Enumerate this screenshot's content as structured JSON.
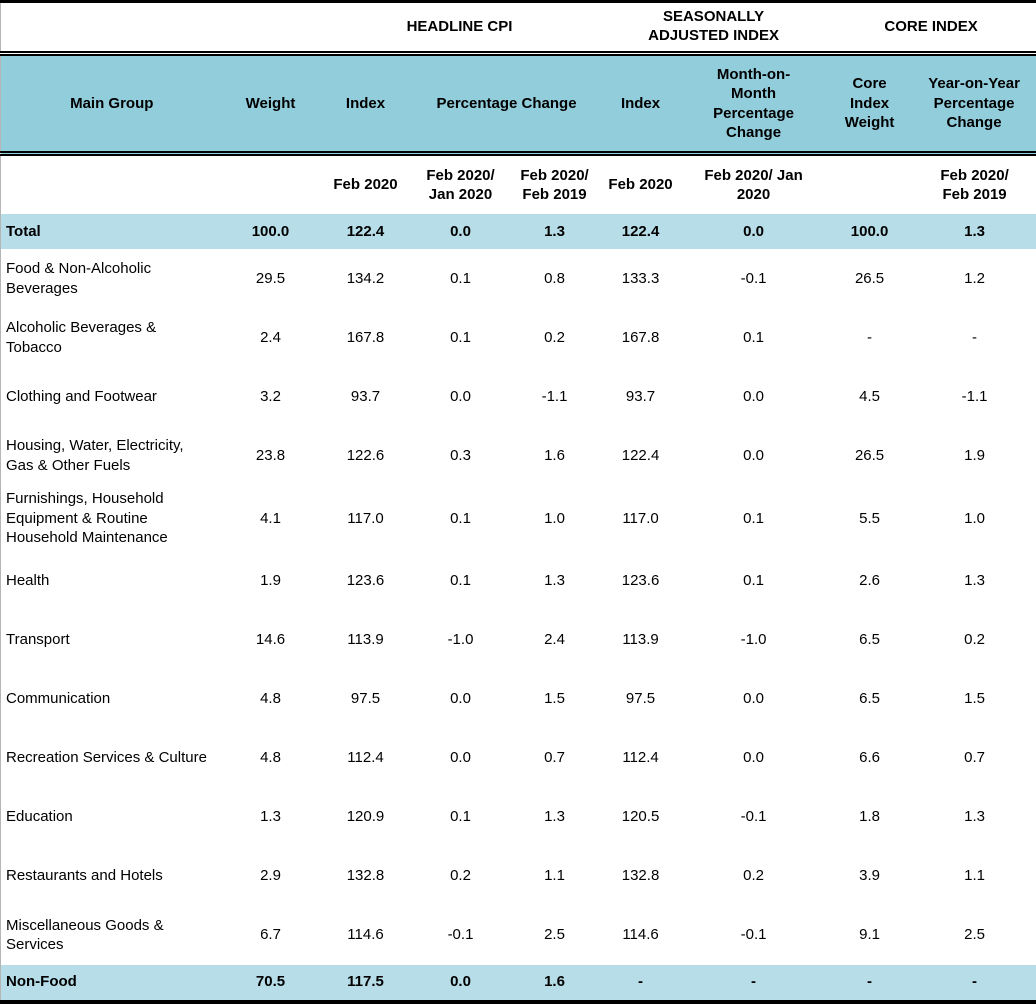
{
  "table": {
    "group_headers": {
      "headline_cpi": "HEADLINE CPI",
      "seasonally_adjusted": "SEASONALLY\nADJUSTED INDEX",
      "core_index": "CORE INDEX"
    },
    "columns": {
      "main_group": "Main Group",
      "weight": "Weight",
      "index": "Index",
      "percentage_change": "Percentage Change",
      "sa_index": "Index",
      "mom_percentage_change": "Month-on-\nMonth\nPercentage\nChange",
      "core_index_weight": "Core\nIndex\nWeight",
      "yoy_percentage_change": "Year-on-Year\nPercentage\nChange"
    },
    "period_headers": {
      "index_period": "Feb 2020",
      "pc_mom_period": "Feb 2020/\nJan 2020",
      "pc_yoy_period": "Feb 2020/\nFeb 2019",
      "sa_index_period": "Feb 2020",
      "sa_mom_period": "Feb 2020/ Jan\n2020",
      "core_yoy_period": "Feb 2020/\nFeb 2019"
    },
    "rows": [
      {
        "label": "Total",
        "highlight": true,
        "values": [
          "100.0",
          "122.4",
          "0.0",
          "1.3",
          "122.4",
          "0.0",
          "100.0",
          "1.3"
        ]
      },
      {
        "label": "Food & Non-Alcoholic Beverages",
        "highlight": false,
        "values": [
          "29.5",
          "134.2",
          "0.1",
          "0.8",
          "133.3",
          "-0.1",
          "26.5",
          "1.2"
        ]
      },
      {
        "label": "Alcoholic Beverages & Tobacco",
        "highlight": false,
        "values": [
          "2.4",
          "167.8",
          "0.1",
          "0.2",
          "167.8",
          "0.1",
          "-",
          "-"
        ]
      },
      {
        "label": "Clothing and Footwear",
        "highlight": false,
        "values": [
          "3.2",
          "93.7",
          "0.0",
          "-1.1",
          "93.7",
          "0.0",
          "4.5",
          "-1.1"
        ]
      },
      {
        "label": "Housing, Water, Electricity, Gas & Other Fuels",
        "highlight": false,
        "values": [
          "23.8",
          "122.6",
          "0.3",
          "1.6",
          "122.4",
          "0.0",
          "26.5",
          "1.9"
        ]
      },
      {
        "label": "Furnishings, Household Equipment  & Routine Household Maintenance",
        "highlight": false,
        "values": [
          "4.1",
          "117.0",
          "0.1",
          "1.0",
          "117.0",
          "0.1",
          "5.5",
          "1.0"
        ]
      },
      {
        "label": "Health",
        "highlight": false,
        "values": [
          "1.9",
          "123.6",
          "0.1",
          "1.3",
          "123.6",
          "0.1",
          "2.6",
          "1.3"
        ]
      },
      {
        "label": "Transport",
        "highlight": false,
        "values": [
          "14.6",
          "113.9",
          "-1.0",
          "2.4",
          "113.9",
          "-1.0",
          "6.5",
          "0.2"
        ]
      },
      {
        "label": "Communication",
        "highlight": false,
        "values": [
          "4.8",
          "97.5",
          "0.0",
          "1.5",
          "97.5",
          "0.0",
          "6.5",
          "1.5"
        ]
      },
      {
        "label": "Recreation Services & Culture",
        "highlight": false,
        "values": [
          "4.8",
          "112.4",
          "0.0",
          "0.7",
          "112.4",
          "0.0",
          "6.6",
          "0.7"
        ]
      },
      {
        "label": "Education",
        "highlight": false,
        "values": [
          "1.3",
          "120.9",
          "0.1",
          "1.3",
          "120.5",
          "-0.1",
          "1.8",
          "1.3"
        ]
      },
      {
        "label": "Restaurants and Hotels",
        "highlight": false,
        "values": [
          "2.9",
          "132.8",
          "0.2",
          "1.1",
          "132.8",
          "0.2",
          "3.9",
          "1.1"
        ]
      },
      {
        "label": "Miscellaneous Goods & Services",
        "highlight": false,
        "values": [
          "6.7",
          "114.6",
          "-0.1",
          "2.5",
          "114.6",
          "-0.1",
          "9.1",
          "2.5"
        ]
      },
      {
        "label": "Non-Food",
        "highlight": true,
        "values": [
          "70.5",
          "117.5",
          "0.0",
          "1.6",
          "-",
          "-",
          "-",
          "-"
        ]
      }
    ],
    "colors": {
      "header_bg": "#92CDDC",
      "highlight_bg": "#B7DDE8",
      "border": "#000000"
    }
  }
}
